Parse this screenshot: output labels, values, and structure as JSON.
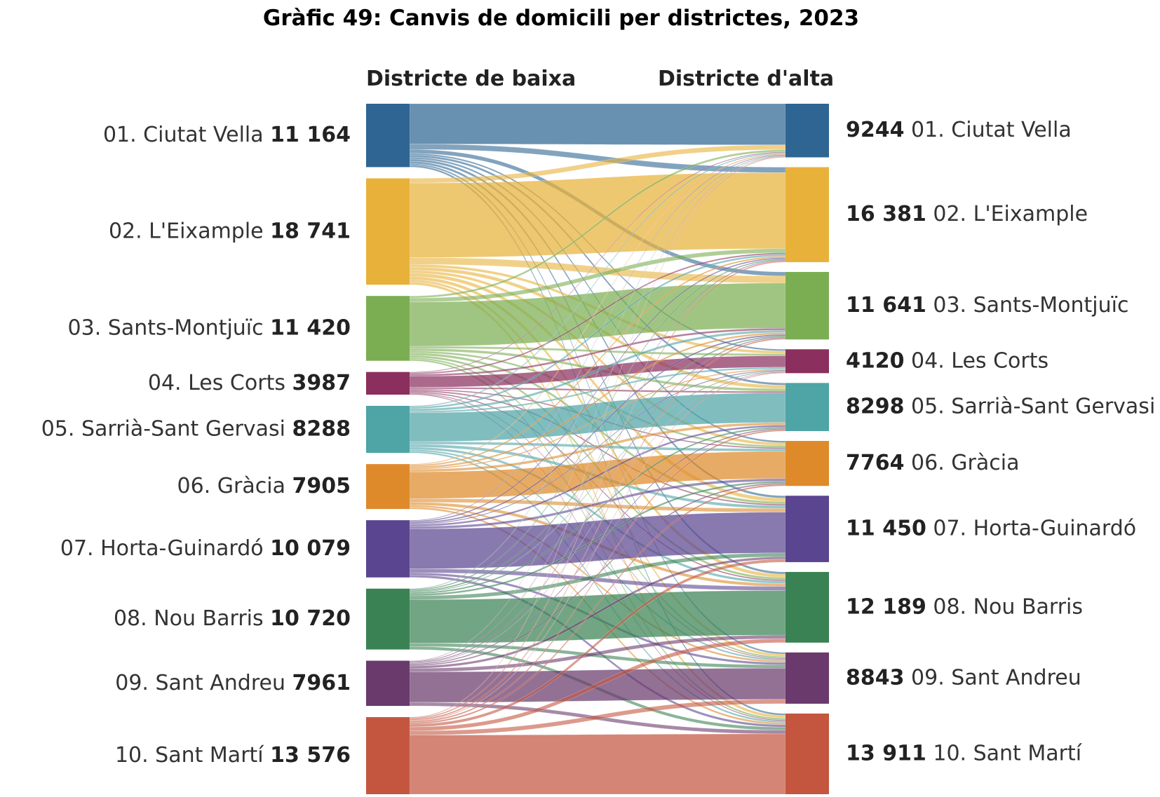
{
  "title": "Gràfic 49: Canvis de domicili per districtes, 2023",
  "chart_data": {
    "type": "sankey",
    "left_header": "Districte de baixa",
    "right_header": "Districte d'alta",
    "districts": [
      {
        "name": "01. Ciutat Vella",
        "color": "#2e6592"
      },
      {
        "name": "02. L'Eixample",
        "color": "#e8b23a"
      },
      {
        "name": "03. Sants-Montjuïc",
        "color": "#7bae52"
      },
      {
        "name": "04. Les Corts",
        "color": "#8b2f5e"
      },
      {
        "name": "05. Sarrià-Sant Gervasi",
        "color": "#4fa4a6"
      },
      {
        "name": "06. Gràcia",
        "color": "#de8a2a"
      },
      {
        "name": "07. Horta-Guinardó",
        "color": "#5a4590"
      },
      {
        "name": "08. Nou Barris",
        "color": "#3a8254"
      },
      {
        "name": "09. Sant Andreu",
        "color": "#6a3a6c"
      },
      {
        "name": "10. Sant Martí",
        "color": "#c45640"
      }
    ],
    "left_values": [
      11164,
      18741,
      11420,
      3987,
      8288,
      7905,
      10079,
      10720,
      7961,
      13576
    ],
    "right_values": [
      9244,
      16381,
      11641,
      4120,
      8298,
      7764,
      11450,
      12189,
      8843,
      13911
    ],
    "left_labels": [
      "11 164",
      "18 741",
      "11 420",
      "3987",
      "8288",
      "7905",
      "10 079",
      "10 720",
      "7961",
      "13 576"
    ],
    "right_labels": [
      "9244",
      "16 381",
      "11 641",
      "4120",
      "8298",
      "7764",
      "11 450",
      "12 189",
      "8843",
      "13 911"
    ]
  }
}
